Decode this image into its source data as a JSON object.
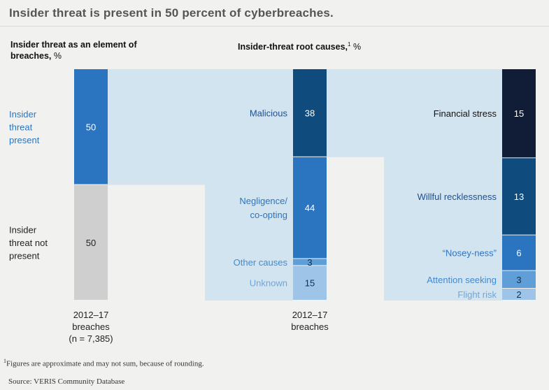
{
  "chart_data": {
    "type": "bar",
    "title": "Insider threat is present in 50 percent of cyberbreaches.",
    "panels": [
      {
        "heading": "Insider threat as an element of breaches,",
        "unit": "%",
        "footnote_marker": "",
        "category_label": [
          "2012–17",
          "breaches",
          "(n = 7,385)"
        ],
        "segments": [
          {
            "label": "Insider threat present",
            "value": 50,
            "color": "#2b74c0",
            "label_color": "#2b74c0",
            "text_color": "#ffffff"
          },
          {
            "label": "Insider threat not present",
            "value": 50,
            "color": "#cfcfcf",
            "label_color": "#222222",
            "text_color": "#222222"
          }
        ]
      },
      {
        "heading": "Insider-threat root causes,",
        "unit": "%",
        "footnote_marker": "1",
        "category_label": [
          "2012–17",
          "breaches"
        ],
        "segments": [
          {
            "label": "Malicious",
            "value": 38,
            "color": "#0f4b7c",
            "label_color": "#1f4f8c",
            "text_color": "#ffffff"
          },
          {
            "label": "Negligence/ co-opting",
            "value": 44,
            "color": "#2b74c0",
            "label_color": "#2b74c0",
            "text_color": "#ffffff"
          },
          {
            "label": "Other causes",
            "value": 3,
            "color": "#5f9ed6",
            "label_color": "#3f8ad0",
            "text_color": "#0b2f55"
          },
          {
            "label": "Unknown",
            "value": 15,
            "color": "#9ec4e8",
            "label_color": "#6fa6da",
            "text_color": "#0b2f55"
          }
        ]
      },
      {
        "heading": "",
        "unit": "",
        "footnote_marker": "",
        "category_label": [],
        "segments": [
          {
            "label": "Financial stress",
            "value": 15,
            "color": "#111d36",
            "label_color": "#111111",
            "text_color": "#ffffff"
          },
          {
            "label": "Willful recklessness",
            "value": 13,
            "color": "#0f4b7c",
            "label_color": "#1f4f8c",
            "text_color": "#ffffff"
          },
          {
            "label": "“Nosey-ness”",
            "value": 6,
            "color": "#2b74c0",
            "label_color": "#2b74c0",
            "text_color": "#ffffff"
          },
          {
            "label": "Attention seeking",
            "value": 3,
            "color": "#5f9ed6",
            "label_color": "#3f8ad0",
            "text_color": "#0b2f55"
          },
          {
            "label": "Flight risk",
            "value": 2,
            "color": "#9ec4e8",
            "label_color": "#6fa6da",
            "text_color": "#0b2f55"
          }
        ]
      }
    ],
    "connector_color": "#d3e4f1",
    "footnotes": [
      {
        "marker": "1",
        "text": "Figures are approximate and may not sum, because of rounding."
      },
      {
        "marker": "",
        "text": "Source: VERIS Community Database"
      }
    ]
  }
}
